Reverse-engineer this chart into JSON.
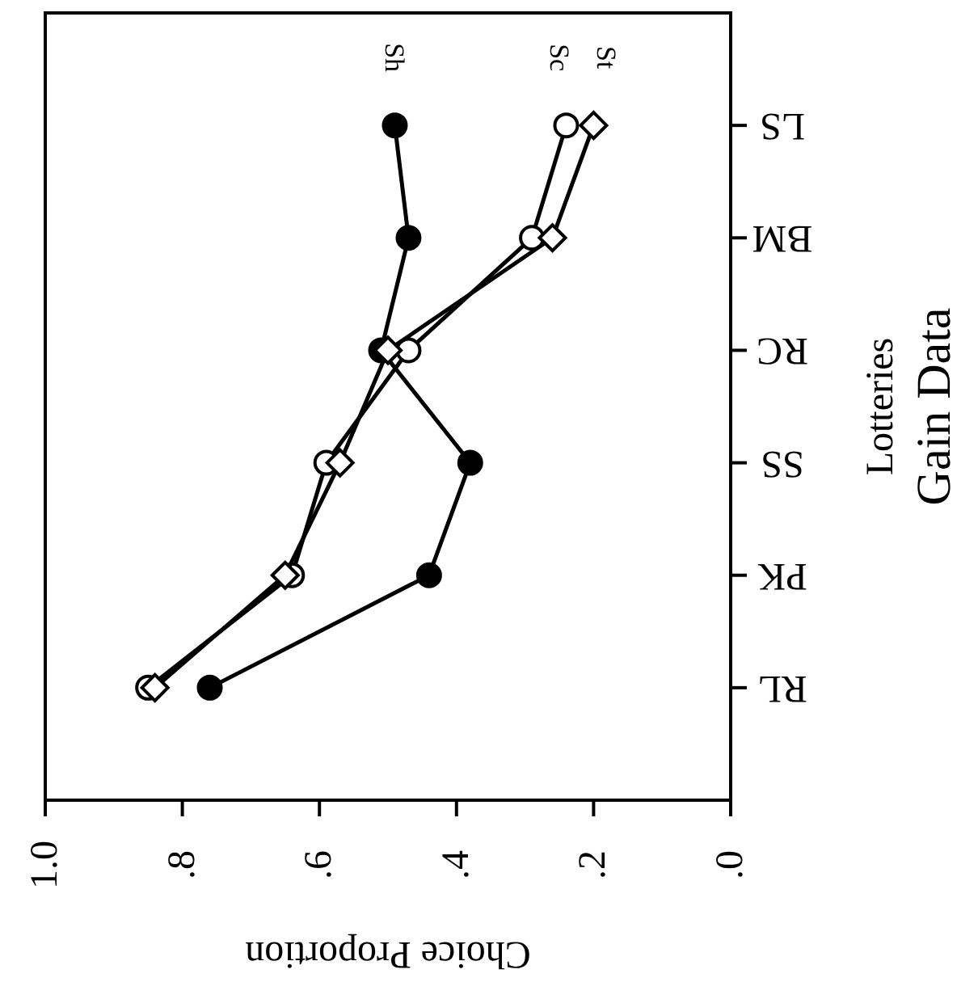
{
  "chart_data": {
    "type": "line",
    "orientation": "horizontal",
    "title": "Gain Data",
    "xlabel": "Choice Proportion",
    "ylabel": "Lotteries",
    "categories": [
      "LS",
      "BM",
      "RC",
      "SS",
      "PK",
      "RL"
    ],
    "series": [
      {
        "name": "Sh",
        "color": "#000000",
        "marker": "circle",
        "values": [
          0.49,
          0.47,
          0.51,
          0.38,
          0.44,
          0.76
        ]
      },
      {
        "name": "Sc",
        "color": "#ffffff",
        "marker": "circle",
        "values": [
          0.24,
          0.29,
          0.47,
          0.59,
          0.64,
          0.85
        ]
      },
      {
        "name": "St",
        "color": "#ffffff",
        "marker": "diamond",
        "values": [
          0.2,
          0.26,
          0.5,
          0.57,
          0.65,
          0.84
        ]
      }
    ],
    "xlim": [
      1,
      0
    ],
    "xticks": [
      {
        "value": 1,
        "label": "1.0"
      },
      {
        "value": 0.8,
        "label": ".8"
      },
      {
        "value": 0.6,
        "label": ".6"
      },
      {
        "value": 0.4,
        "label": ".4"
      },
      {
        "value": 0.2,
        "label": ".2"
      },
      {
        "value": 0,
        "label": ".0"
      }
    ],
    "grid": false,
    "legend": false,
    "line_style": "solid"
  }
}
